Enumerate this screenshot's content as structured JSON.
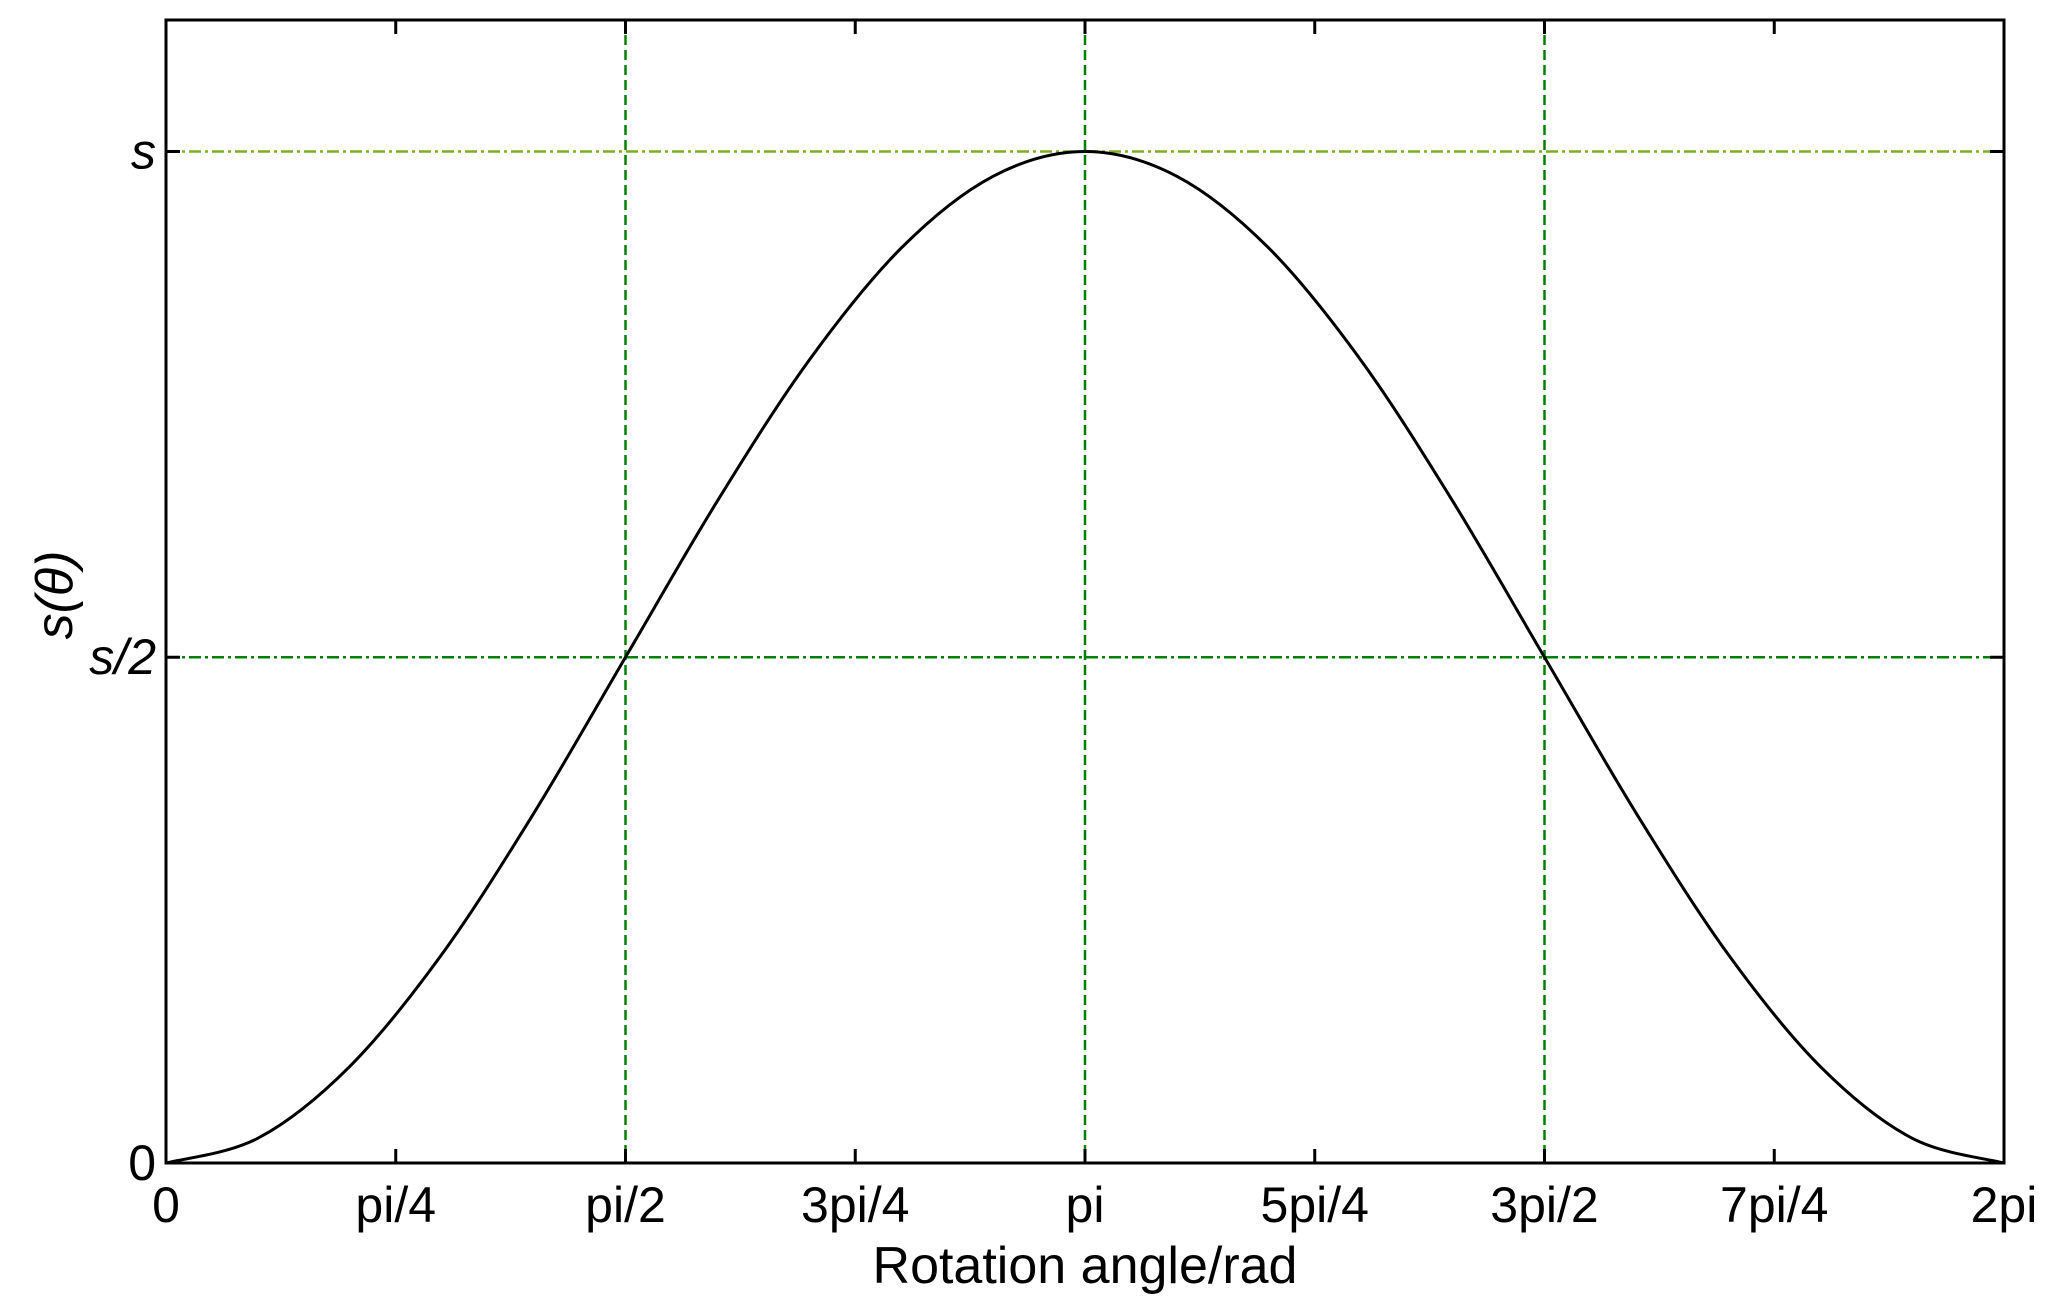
{
  "chart_data": {
    "type": "line",
    "xlabel": "Rotation angle/rad",
    "ylabel": "s(θ)",
    "xlim": [
      0,
      6.283185
    ],
    "ylim": [
      0,
      1.13
    ],
    "x_ticks": [
      {
        "value": 0,
        "label": "0"
      },
      {
        "value": 0.785398,
        "label": "pi/4"
      },
      {
        "value": 1.570796,
        "label": "pi/2"
      },
      {
        "value": 2.356194,
        "label": "3pi/4"
      },
      {
        "value": 3.141593,
        "label": "pi"
      },
      {
        "value": 3.926991,
        "label": "5pi/4"
      },
      {
        "value": 4.712389,
        "label": "3pi/2"
      },
      {
        "value": 5.497787,
        "label": "7pi/4"
      },
      {
        "value": 6.283185,
        "label": "2pi"
      }
    ],
    "y_ticks": [
      {
        "value": 0,
        "label": "0"
      },
      {
        "value": 0.5,
        "label": "s/2"
      },
      {
        "value": 1,
        "label": "s"
      }
    ],
    "series": [
      {
        "color": "#000000",
        "x": [
          0,
          0.314159,
          0.628319,
          0.942478,
          1.256637,
          1.570796,
          1.884956,
          2.199115,
          2.513274,
          2.827433,
          3.141593,
          3.455752,
          3.769911,
          4.08407,
          4.39823,
          4.712389,
          5.026548,
          5.340708,
          5.654867,
          5.969026,
          6.283185
        ],
        "y": [
          0,
          0.0245,
          0.0955,
          0.2061,
          0.3455,
          0.5,
          0.6545,
          0.7939,
          0.9045,
          0.9755,
          1,
          0.9755,
          0.9045,
          0.7939,
          0.6545,
          0.5,
          0.3455,
          0.2061,
          0.0955,
          0.0245,
          0
        ]
      }
    ],
    "reference_lines": {
      "color": "#008000",
      "vertical_x": [
        1.570796,
        3.141593,
        4.712389
      ],
      "horizontal_y": [
        0.5,
        1
      ]
    },
    "grid": false,
    "legend": "none"
  }
}
